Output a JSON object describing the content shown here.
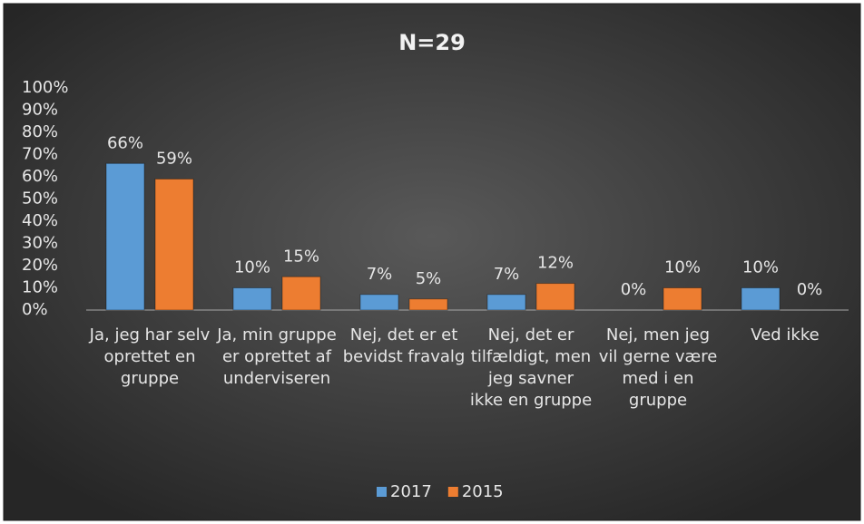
{
  "chart_data": {
    "type": "bar",
    "title": "N=29",
    "categories": [
      "Ja, jeg har selv oprettet en gruppe",
      "Ja, min gruppe er oprettet af underviseren",
      "Nej, det er et bevidst fravalg",
      "Nej, det er tilfældigt, men jeg savner ikke en gruppe",
      "Nej, men jeg vil gerne være med i en gruppe",
      "Ved ikke"
    ],
    "series": [
      {
        "name": "2017",
        "color": "#5b9bd5",
        "values": [
          66,
          10,
          7,
          7,
          0,
          10
        ],
        "value_labels": [
          "66%",
          "10%",
          "7%",
          "7%",
          "0%",
          "10%"
        ]
      },
      {
        "name": "2015",
        "color": "#ed7d31",
        "values": [
          59,
          15,
          5,
          12,
          10,
          0
        ],
        "value_labels": [
          "59%",
          "15%",
          "5%",
          "12%",
          "10%",
          "0%"
        ]
      }
    ],
    "ylim": [
      0,
      100
    ],
    "yticks": [
      {
        "value": 0,
        "label": "0%"
      },
      {
        "value": 10,
        "label": "10%"
      },
      {
        "value": 20,
        "label": "20%"
      },
      {
        "value": 30,
        "label": "30%"
      },
      {
        "value": 40,
        "label": "40%"
      },
      {
        "value": 50,
        "label": "50%"
      },
      {
        "value": 60,
        "label": "60%"
      },
      {
        "value": 70,
        "label": "70%"
      },
      {
        "value": 80,
        "label": "80%"
      },
      {
        "value": 90,
        "label": "90%"
      },
      {
        "value": 100,
        "label": "100%"
      }
    ],
    "grid": false,
    "legend": "bottom"
  }
}
